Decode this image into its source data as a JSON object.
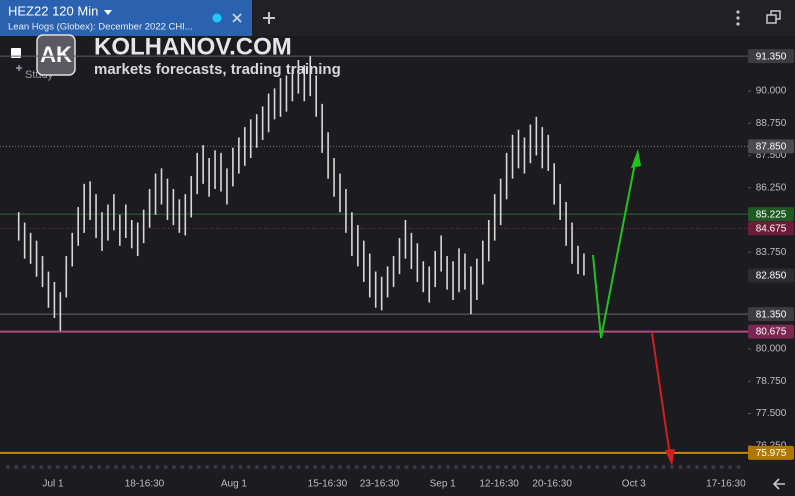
{
  "header": {
    "symbol": "HEZ22 120 Min",
    "description": "Lean Hogs (Globex): December 2022 CHI...",
    "logo": "AK",
    "watermark_title": "KOLHANOV.COM",
    "watermark_subtitle": "markets forecasts, trading training",
    "study": "Study"
  },
  "chart_data": {
    "type": "hl-bars",
    "color": "#d9d9d9",
    "grid": false,
    "xlim": [
      0,
      220
    ],
    "ylim": [
      75.31,
      92.13
    ],
    "xticks": [
      {
        "value": 15.6,
        "label": "Jul 1"
      },
      {
        "value": 42.5,
        "label": "18-16:30"
      },
      {
        "value": 68.8,
        "label": "Aug 1"
      },
      {
        "value": 96.3,
        "label": "15-16:30"
      },
      {
        "value": 111.6,
        "label": "23-16:30"
      },
      {
        "value": 130.2,
        "label": "Sep 1"
      },
      {
        "value": 146.8,
        "label": "12-16:30"
      },
      {
        "value": 162.4,
        "label": "20-16:30"
      },
      {
        "value": 186.4,
        "label": "Oct 3"
      },
      {
        "value": 213.5,
        "label": "17-16:30"
      }
    ],
    "yticks": [
      {
        "value": 90,
        "label": "90.000"
      },
      {
        "value": 88.75,
        "label": "88.750"
      },
      {
        "value": 87.5,
        "label": "87.500"
      },
      {
        "value": 86.25,
        "label": "86.250"
      },
      {
        "value": 83.75,
        "label": "83.750"
      },
      {
        "value": 80,
        "label": "80.000"
      },
      {
        "value": 78.75,
        "label": "78.750"
      },
      {
        "value": 77.5,
        "label": "77.500"
      },
      {
        "value": 76.25,
        "label": "76.250"
      }
    ],
    "levels": [
      {
        "value": 91.35,
        "label": "91.350",
        "color": "#5c5c60",
        "box": "#3c3c41",
        "style": "solid",
        "width": 1
      },
      {
        "value": 87.85,
        "label": "87.850",
        "color": "#77777c",
        "box": "#4a4a4f",
        "style": "dotted",
        "width": 1
      },
      {
        "value": 85.225,
        "label": "85.225",
        "color": "#2f6a2f",
        "box": "#1f5a22",
        "style": "solid",
        "width": 1
      },
      {
        "value": 84.675,
        "label": "84.675",
        "color": "#8a2a48",
        "box": "#6b1c36",
        "style": "dotted",
        "width": 1
      },
      {
        "value": 82.85,
        "label": "82.850",
        "color": "#2c2c30",
        "box": "#2c2c31",
        "style": "none",
        "width": 1
      },
      {
        "value": 81.35,
        "label": "81.350",
        "color": "#66666b",
        "box": "#3c3c41",
        "style": "solid",
        "width": 1
      },
      {
        "value": 80.675,
        "label": "80.675",
        "color": "#b04a7c",
        "box": "#7a2752",
        "style": "solid",
        "width": 2
      },
      {
        "value": 75.975,
        "label": "75.975",
        "color": "#c8860a",
        "box": "#b07800",
        "style": "solid",
        "width": 2
      }
    ],
    "x": [
      5.5,
      7.25,
      9,
      10.75,
      12.5,
      14.25,
      16,
      17.75,
      19.5,
      21.25,
      23,
      24.75,
      26.5,
      28.25,
      30,
      31.75,
      33.5,
      35.25,
      37,
      38.75,
      40.5,
      42.25,
      44,
      45.75,
      47.5,
      49.25,
      51,
      52.75,
      54.5,
      56.25,
      58,
      59.75,
      61.5,
      63.25,
      65,
      66.75,
      68.5,
      70.25,
      72,
      73.75,
      75.5,
      77.25,
      79,
      80.75,
      82.5,
      84.25,
      86,
      87.75,
      89.5,
      91.25,
      93,
      94.75,
      96.5,
      98.25,
      100,
      101.75,
      103.5,
      105.25,
      107,
      108.75,
      110.5,
      112.25,
      114,
      115.75,
      117.5,
      119.25,
      121,
      122.75,
      124.5,
      126.25,
      128,
      129.75,
      131.5,
      133.25,
      135,
      136.75,
      138.5,
      140.25,
      142,
      143.75,
      145.5,
      147.25,
      149,
      150.75,
      152.5,
      154.25,
      156,
      157.75,
      159.5,
      161.25,
      163,
      164.75,
      166.5,
      168.25,
      170,
      171.75
    ],
    "high": [
      85.3,
      84.9,
      84.5,
      84.2,
      83.6,
      83.0,
      82.6,
      82.2,
      83.6,
      84.5,
      85.5,
      86.4,
      86.5,
      86.0,
      85.3,
      85.6,
      86.0,
      85.2,
      85.6,
      85.0,
      84.9,
      85.4,
      86.2,
      86.8,
      87.0,
      86.6,
      86.2,
      85.8,
      86.0,
      86.7,
      87.6,
      87.9,
      87.4,
      87.7,
      87.6,
      87.0,
      87.8,
      88.2,
      88.6,
      88.9,
      89.1,
      89.4,
      89.9,
      90.1,
      90.5,
      90.6,
      90.9,
      91.2,
      91.0,
      91.35,
      90.6,
      89.5,
      88.4,
      87.4,
      86.8,
      86.2,
      85.3,
      84.8,
      84.2,
      83.7,
      83.0,
      82.8,
      83.2,
      83.6,
      84.3,
      85.0,
      84.5,
      84.1,
      83.4,
      83.2,
      83.8,
      84.4,
      83.6,
      83.4,
      83.9,
      83.7,
      83.2,
      83.5,
      84.2,
      85.0,
      86.0,
      86.6,
      87.6,
      88.3,
      88.5,
      88.2,
      88.7,
      89.0,
      88.6,
      88.3,
      87.2,
      86.4,
      85.7,
      84.9,
      84.0,
      83.7
    ],
    "low": [
      84.2,
      83.5,
      83.3,
      82.8,
      82.4,
      81.6,
      81.2,
      80.7,
      82.0,
      83.2,
      84.0,
      84.5,
      85.0,
      84.3,
      83.8,
      84.2,
      84.6,
      84.0,
      84.3,
      83.9,
      83.6,
      84.1,
      84.7,
      85.2,
      85.6,
      85.0,
      84.8,
      84.5,
      84.4,
      85.1,
      86.0,
      86.4,
      85.9,
      86.2,
      86.1,
      85.6,
      86.3,
      86.8,
      87.1,
      87.4,
      87.8,
      88.1,
      88.4,
      88.9,
      89.0,
      89.2,
      89.6,
      89.9,
      89.6,
      89.8,
      89.0,
      87.6,
      86.6,
      85.9,
      85.3,
      84.5,
      83.6,
      83.2,
      82.6,
      82.0,
      81.6,
      81.5,
      82.0,
      82.4,
      82.9,
      83.5,
      83.1,
      82.6,
      82.2,
      81.8,
      82.4,
      83.0,
      82.3,
      81.9,
      82.2,
      82.3,
      81.35,
      81.9,
      82.5,
      83.4,
      84.2,
      84.8,
      85.8,
      86.6,
      87.0,
      86.8,
      87.2,
      87.5,
      87.0,
      86.9,
      85.6,
      85.0,
      84.0,
      83.3,
      82.9,
      82.85
    ]
  }
}
